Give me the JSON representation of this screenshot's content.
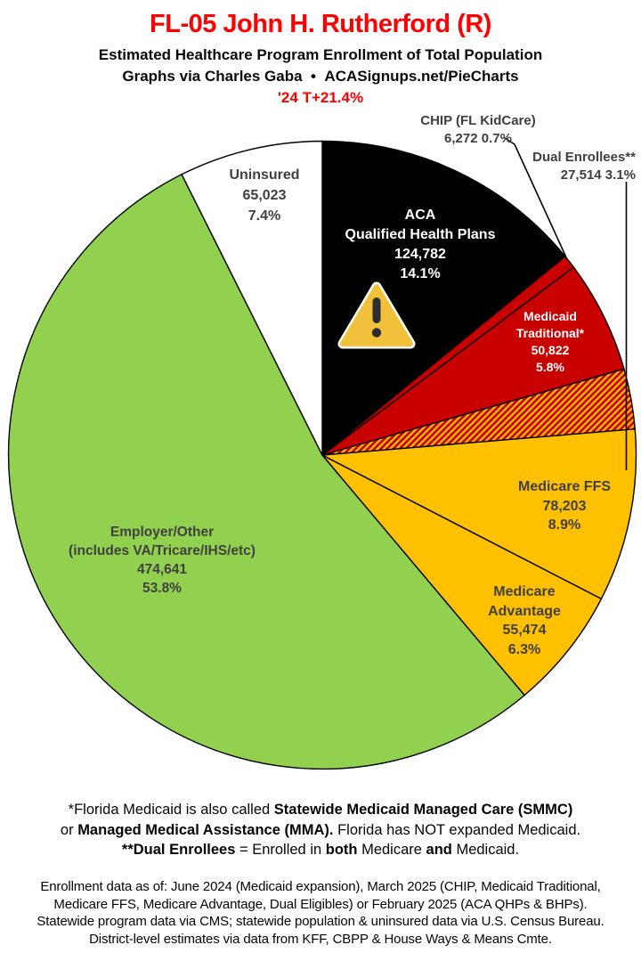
{
  "header": {
    "title": "FL-05 John H. Rutherford (R)",
    "subtitle": "Estimated Healthcare Program Enrollment of Total Population",
    "credit": "Graphs via Charles Gaba  •  ACASignups.net/PieCharts",
    "growth_note": "'24 T+21.4%"
  },
  "theme": {
    "accent_red": "#fe0000",
    "aca_black": "#000000",
    "medicaid_red": "#c80000",
    "medicare_gold": "#ffc000",
    "employer_green": "#92d050",
    "uninsured_white": "#ffffff",
    "slice_label_dark": "#404040",
    "warning_amber": "#f2c13c"
  },
  "chart_data": {
    "type": "pie",
    "title": "Estimated Healthcare Program Enrollment of Total Population",
    "start_angle": "12 o'clock",
    "direction": "clockwise",
    "slices": [
      {
        "id": "aca-qhp",
        "name": "ACA Qualified Health Plans",
        "value": 124782,
        "pct": 14.1,
        "color": "#000000",
        "text_color": "#ffffff",
        "label_lines": [
          "ACA",
          "Qualified Health Plans",
          "124,782",
          "14.1%"
        ]
      },
      {
        "id": "chip",
        "name": "CHIP (FL KidCare)",
        "value": 6272,
        "pct": 0.7,
        "color": "#c80000",
        "callout_lines": [
          "CHIP (FL KidCare)",
          "6,272 0.7%"
        ]
      },
      {
        "id": "medicaid-traditional",
        "name": "Medicaid Traditional*",
        "value": 50822,
        "pct": 5.8,
        "color": "#c80000",
        "text_color": "#ffffff",
        "label_lines": [
          "Medicaid",
          "Traditional*",
          "50,822",
          "5.8%"
        ]
      },
      {
        "id": "dual-enrollees",
        "name": "Dual Enrollees**",
        "value": 27514,
        "pct": 3.1,
        "color": "#c80000",
        "pattern": "diagonal-stripes",
        "pattern_stripe_color": "#ffc000",
        "callout_lines": [
          "Dual Enrollees**",
          "27,514 3.1%"
        ]
      },
      {
        "id": "medicare-ffs",
        "name": "Medicare FFS",
        "value": 78203,
        "pct": 8.9,
        "color": "#ffc000",
        "text_color": "#404040",
        "label_lines": [
          "Medicare FFS",
          "78,203",
          "8.9%"
        ]
      },
      {
        "id": "medicare-advantage",
        "name": "Medicare Advantage",
        "value": 55474,
        "pct": 6.3,
        "color": "#ffc000",
        "text_color": "#404040",
        "label_lines": [
          "Medicare",
          "Advantage",
          "55,474",
          "6.3%"
        ]
      },
      {
        "id": "employer-other",
        "name": "Employer/Other (includes VA/Tricare/IHS/etc)",
        "value": 474641,
        "pct": 53.8,
        "color": "#92d050",
        "text_color": "#404040",
        "label_lines": [
          "Employer/Other",
          "(includes VA/Tricare/IHS/etc)",
          "474,641",
          "53.8%"
        ]
      },
      {
        "id": "uninsured",
        "name": "Uninsured",
        "value": 65023,
        "pct": 7.4,
        "color": "#ffffff",
        "text_color": "#404040",
        "label_lines": [
          "Uninsured",
          "65,023",
          "7.4%"
        ]
      }
    ]
  },
  "footnotes": {
    "line1": [
      "*Florida Medicaid is also called ",
      "Statewide Medicaid Managed Care (SMMC)"
    ],
    "line2": [
      "or ",
      "Managed Medical Assistance (MMA).",
      " Florida has NOT expanded Medicaid."
    ],
    "line3": [
      "**Dual Enrollees",
      " = Enrolled in ",
      "both",
      " Medicare ",
      "and",
      " Medicaid."
    ]
  },
  "source_note": {
    "lines": [
      "Enrollment data as of: June 2024 (Medicaid expansion), March 2025 (CHIP, Medicaid Traditional,",
      "Medicare FFS, Medicare Advantage, Dual Eligibles) or February 2025 (ACA QHPs & BHPs).",
      "Statewide program data via CMS; statewide population & uninsured data via U.S. Census Bureau.",
      "District-level estimates via data from KFF, CBPP & House Ways & Means Cmte."
    ]
  }
}
